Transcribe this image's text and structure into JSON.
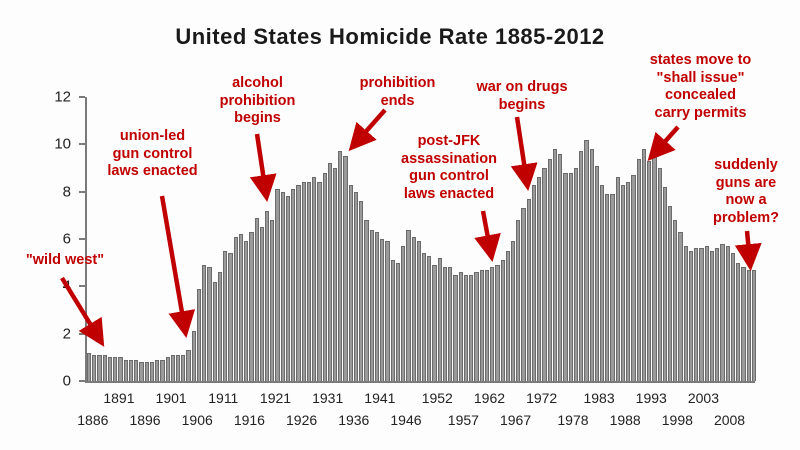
{
  "title": "United States Homicide Rate 1885-2012",
  "colors": {
    "bar": "#9a9a9a",
    "bar_outline": "#6b6b6b",
    "annotation": "#c00000",
    "axis": "#7a7a7a",
    "title_text": "#1a1a1a",
    "background": "#fdfdfd"
  },
  "chart_data": {
    "type": "bar",
    "title": "United States Homicide Rate 1885-2012",
    "xlabel": "",
    "ylabel": "",
    "ylim": [
      0,
      12
    ],
    "yticks": [
      0,
      2,
      4,
      6,
      8,
      10,
      12
    ],
    "grid": false,
    "legend": false,
    "x_start": 1885,
    "x_end": 2012,
    "xtick_row1": [
      1891,
      1901,
      1911,
      1921,
      1931,
      1941,
      1952,
      1962,
      1972,
      1983,
      1993,
      2003
    ],
    "xtick_row2": [
      1886,
      1896,
      1906,
      1916,
      1926,
      1936,
      1946,
      1957,
      1967,
      1978,
      1988,
      1998,
      2008
    ],
    "values": [
      1.2,
      1.1,
      1.1,
      1.1,
      1.0,
      1.0,
      1.0,
      0.9,
      0.9,
      0.9,
      0.8,
      0.8,
      0.8,
      0.9,
      0.9,
      1.0,
      1.1,
      1.1,
      1.1,
      1.3,
      2.1,
      3.9,
      4.9,
      4.8,
      4.2,
      4.6,
      5.5,
      5.4,
      6.1,
      6.2,
      5.9,
      6.3,
      6.9,
      6.5,
      7.2,
      6.8,
      8.1,
      8.0,
      7.8,
      8.1,
      8.3,
      8.4,
      8.4,
      8.6,
      8.4,
      8.8,
      9.2,
      9.0,
      9.7,
      9.5,
      8.3,
      8.0,
      7.6,
      6.8,
      6.4,
      6.3,
      6.0,
      5.9,
      5.1,
      5.0,
      5.7,
      6.4,
      6.1,
      5.9,
      5.4,
      5.3,
      4.9,
      5.2,
      4.8,
      4.8,
      4.5,
      4.6,
      4.5,
      4.5,
      4.6,
      4.7,
      4.7,
      4.8,
      4.9,
      5.1,
      5.5,
      5.9,
      6.8,
      7.3,
      7.7,
      8.3,
      8.6,
      9.0,
      9.4,
      9.8,
      9.6,
      8.8,
      8.8,
      9.0,
      9.7,
      10.2,
      9.8,
      9.1,
      8.3,
      7.9,
      7.9,
      8.6,
      8.3,
      8.4,
      8.7,
      9.4,
      9.8,
      9.3,
      9.5,
      9.0,
      8.2,
      7.4,
      6.8,
      6.3,
      5.7,
      5.5,
      5.6,
      5.6,
      5.7,
      5.5,
      5.6,
      5.8,
      5.7,
      5.4,
      5.0,
      4.8,
      4.7,
      4.7
    ],
    "annotations": [
      {
        "label": "\"wild west\"",
        "target_year": 1890
      },
      {
        "label": "union-led\ngun control\nlaws enacted",
        "target_year": 1905
      },
      {
        "label": "alcohol\nprohibition\nbegins",
        "target_year": 1920
      },
      {
        "label": "prohibition\nends",
        "target_year": 1933
      },
      {
        "label": "post-JFK\nassassination\ngun control\nlaws enacted",
        "target_year": 1963
      },
      {
        "label": "war on drugs\nbegins",
        "target_year": 1970
      },
      {
        "label": "states move to\n\"shall issue\"\nconcealed\ncarry permits",
        "target_year": 1991
      },
      {
        "label": "suddenly\nguns are\nnow a\nproblem?",
        "target_year": 2012
      }
    ]
  }
}
